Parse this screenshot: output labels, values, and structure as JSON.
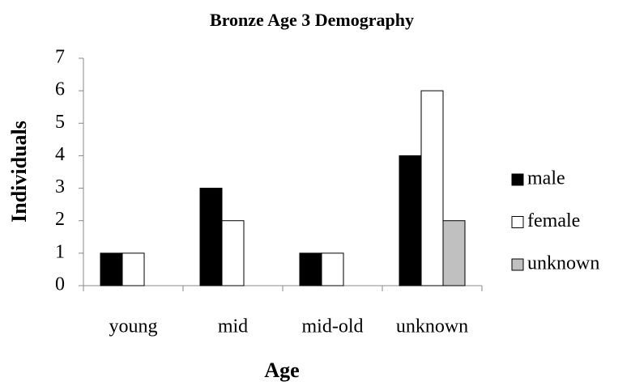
{
  "chart_data": {
    "type": "bar",
    "title": "Bronze Age 3 Demography",
    "x_label": "Age",
    "y_label": "Individuals",
    "categories": [
      "young",
      "mid",
      "mid-old",
      "unknown"
    ],
    "series": [
      {
        "name": "male",
        "color": "#000000",
        "values": [
          1,
          3,
          1,
          4
        ]
      },
      {
        "name": "female",
        "color": "#ffffff",
        "values": [
          1,
          2,
          1,
          6
        ]
      },
      {
        "name": "unknown",
        "color": "#c0c0c0",
        "values": [
          0,
          0,
          0,
          2
        ]
      }
    ],
    "ylim": [
      0,
      7
    ],
    "yticks": [
      0,
      1,
      2,
      3,
      4,
      5,
      6,
      7
    ],
    "grid": false,
    "legend": "right"
  }
}
